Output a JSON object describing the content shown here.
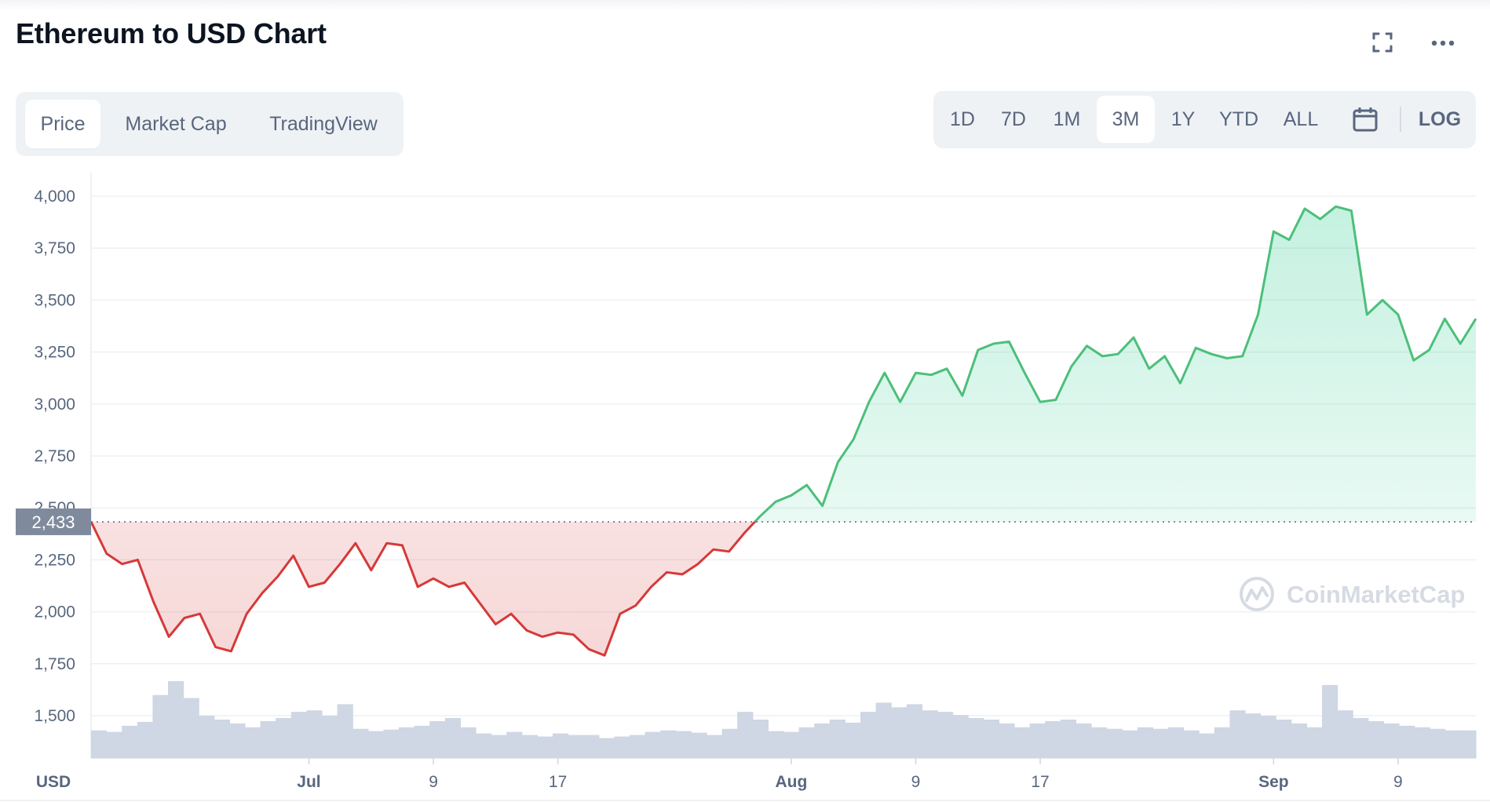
{
  "header": {
    "title": "Ethereum to USD Chart",
    "fullscreen_icon": "fullscreen-icon",
    "more_icon": "more-dots-icon"
  },
  "tabs": [
    {
      "label": "Price",
      "active": true
    },
    {
      "label": "Market Cap",
      "active": false
    },
    {
      "label": "TradingView",
      "active": false
    }
  ],
  "ranges": [
    {
      "label": "1D",
      "active": false
    },
    {
      "label": "7D",
      "active": false
    },
    {
      "label": "1M",
      "active": false
    },
    {
      "label": "3M",
      "active": true
    },
    {
      "label": "1Y",
      "active": false
    },
    {
      "label": "YTD",
      "active": false
    },
    {
      "label": "ALL",
      "active": false
    }
  ],
  "calendar_icon": "calendar-icon",
  "log_label": "LOG",
  "watermark": "CoinMarketCap",
  "colors": {
    "up": "#16c784",
    "up_line": "#4cbf7a",
    "down": "#d63939",
    "volume": "#cfd6e4",
    "baseline_badge": "#808a9d"
  },
  "chart_data": {
    "type": "area",
    "title": "Ethereum to USD Chart",
    "currency_label": "USD",
    "baseline": {
      "value": 2433,
      "label": "2,433"
    },
    "ylim": [
      1300,
      4100
    ],
    "yticks": [
      {
        "value": 1500,
        "label": "1,500"
      },
      {
        "value": 1750,
        "label": "1,750"
      },
      {
        "value": 2000,
        "label": "2,000"
      },
      {
        "value": 2250,
        "label": "2,250"
      },
      {
        "value": 2500,
        "label": "2,500"
      },
      {
        "value": 2750,
        "label": "2,750"
      },
      {
        "value": 3000,
        "label": "3,000"
      },
      {
        "value": 3250,
        "label": "3,250"
      },
      {
        "value": 3500,
        "label": "3,500"
      },
      {
        "value": 3750,
        "label": "3,750"
      },
      {
        "value": 4000,
        "label": "4,000"
      }
    ],
    "xlim": [
      "2021-06-17",
      "2021-09-14"
    ],
    "xticks": [
      {
        "date": "2021-07-01",
        "label": "Jul",
        "major": true
      },
      {
        "date": "2021-07-09",
        "label": "9",
        "major": false
      },
      {
        "date": "2021-07-17",
        "label": "17",
        "major": false
      },
      {
        "date": "2021-08-01",
        "label": "Aug",
        "major": true
      },
      {
        "date": "2021-08-09",
        "label": "9",
        "major": false
      },
      {
        "date": "2021-08-17",
        "label": "17",
        "major": false
      },
      {
        "date": "2021-09-01",
        "label": "Sep",
        "major": true
      },
      {
        "date": "2021-09-09",
        "label": "9",
        "major": false
      }
    ],
    "series": [
      {
        "data": [
          [
            "2021-06-17",
            2433
          ],
          [
            "2021-06-18",
            2280
          ],
          [
            "2021-06-19",
            2230
          ],
          [
            "2021-06-20",
            2250
          ],
          [
            "2021-06-21",
            2050
          ],
          [
            "2021-06-22",
            1880
          ],
          [
            "2021-06-23",
            1970
          ],
          [
            "2021-06-24",
            1990
          ],
          [
            "2021-06-25",
            1830
          ],
          [
            "2021-06-26",
            1810
          ],
          [
            "2021-06-27",
            1990
          ],
          [
            "2021-06-28",
            2090
          ],
          [
            "2021-06-29",
            2170
          ],
          [
            "2021-06-30",
            2270
          ],
          [
            "2021-07-01",
            2120
          ],
          [
            "2021-07-02",
            2140
          ],
          [
            "2021-07-03",
            2230
          ],
          [
            "2021-07-04",
            2330
          ],
          [
            "2021-07-05",
            2200
          ],
          [
            "2021-07-06",
            2330
          ],
          [
            "2021-07-07",
            2320
          ],
          [
            "2021-07-08",
            2120
          ],
          [
            "2021-07-09",
            2160
          ],
          [
            "2021-07-10",
            2120
          ],
          [
            "2021-07-11",
            2140
          ],
          [
            "2021-07-12",
            2040
          ],
          [
            "2021-07-13",
            1940
          ],
          [
            "2021-07-14",
            1990
          ],
          [
            "2021-07-15",
            1910
          ],
          [
            "2021-07-16",
            1880
          ],
          [
            "2021-07-17",
            1900
          ],
          [
            "2021-07-18",
            1890
          ],
          [
            "2021-07-19",
            1820
          ],
          [
            "2021-07-20",
            1790
          ],
          [
            "2021-07-21",
            1990
          ],
          [
            "2021-07-22",
            2030
          ],
          [
            "2021-07-23",
            2120
          ],
          [
            "2021-07-24",
            2190
          ],
          [
            "2021-07-25",
            2180
          ],
          [
            "2021-07-26",
            2230
          ],
          [
            "2021-07-27",
            2300
          ],
          [
            "2021-07-28",
            2290
          ],
          [
            "2021-07-29",
            2380
          ],
          [
            "2021-07-30",
            2460
          ],
          [
            "2021-07-31",
            2530
          ],
          [
            "2021-08-01",
            2560
          ],
          [
            "2021-08-02",
            2610
          ],
          [
            "2021-08-03",
            2510
          ],
          [
            "2021-08-04",
            2720
          ],
          [
            "2021-08-05",
            2830
          ],
          [
            "2021-08-06",
            3010
          ],
          [
            "2021-08-07",
            3150
          ],
          [
            "2021-08-08",
            3010
          ],
          [
            "2021-08-09",
            3150
          ],
          [
            "2021-08-10",
            3140
          ],
          [
            "2021-08-11",
            3170
          ],
          [
            "2021-08-12",
            3040
          ],
          [
            "2021-08-13",
            3260
          ],
          [
            "2021-08-14",
            3290
          ],
          [
            "2021-08-15",
            3300
          ],
          [
            "2021-08-16",
            3150
          ],
          [
            "2021-08-17",
            3010
          ],
          [
            "2021-08-18",
            3020
          ],
          [
            "2021-08-19",
            3180
          ],
          [
            "2021-08-20",
            3280
          ],
          [
            "2021-08-21",
            3230
          ],
          [
            "2021-08-22",
            3240
          ],
          [
            "2021-08-23",
            3320
          ],
          [
            "2021-08-24",
            3170
          ],
          [
            "2021-08-25",
            3230
          ],
          [
            "2021-08-26",
            3100
          ],
          [
            "2021-08-27",
            3270
          ],
          [
            "2021-08-28",
            3240
          ],
          [
            "2021-08-29",
            3220
          ],
          [
            "2021-08-30",
            3230
          ],
          [
            "2021-08-31",
            3430
          ],
          [
            "2021-09-01",
            3830
          ],
          [
            "2021-09-02",
            3790
          ],
          [
            "2021-09-03",
            3940
          ],
          [
            "2021-09-04",
            3890
          ],
          [
            "2021-09-05",
            3950
          ],
          [
            "2021-09-06",
            3930
          ],
          [
            "2021-09-07",
            3430
          ],
          [
            "2021-09-08",
            3500
          ],
          [
            "2021-09-09",
            3430
          ],
          [
            "2021-09-10",
            3210
          ],
          [
            "2021-09-11",
            3260
          ],
          [
            "2021-09-12",
            3410
          ],
          [
            "2021-09-13",
            3290
          ],
          [
            "2021-09-14",
            3410
          ]
        ]
      }
    ],
    "volume": [
      0.36,
      0.34,
      0.42,
      0.47,
      0.82,
      1.0,
      0.78,
      0.55,
      0.5,
      0.45,
      0.4,
      0.48,
      0.52,
      0.6,
      0.62,
      0.55,
      0.7,
      0.38,
      0.35,
      0.37,
      0.4,
      0.42,
      0.48,
      0.52,
      0.4,
      0.32,
      0.3,
      0.34,
      0.3,
      0.28,
      0.32,
      0.3,
      0.3,
      0.26,
      0.28,
      0.3,
      0.34,
      0.36,
      0.35,
      0.33,
      0.3,
      0.38,
      0.6,
      0.5,
      0.35,
      0.34,
      0.4,
      0.45,
      0.5,
      0.46,
      0.6,
      0.72,
      0.66,
      0.7,
      0.62,
      0.6,
      0.56,
      0.52,
      0.5,
      0.45,
      0.4,
      0.45,
      0.48,
      0.5,
      0.45,
      0.4,
      0.38,
      0.36,
      0.4,
      0.38,
      0.4,
      0.36,
      0.32,
      0.4,
      0.62,
      0.58,
      0.55,
      0.5,
      0.45,
      0.4,
      0.95,
      0.62,
      0.52,
      0.48,
      0.45,
      0.42,
      0.4,
      0.38,
      0.36,
      0.36
    ]
  }
}
